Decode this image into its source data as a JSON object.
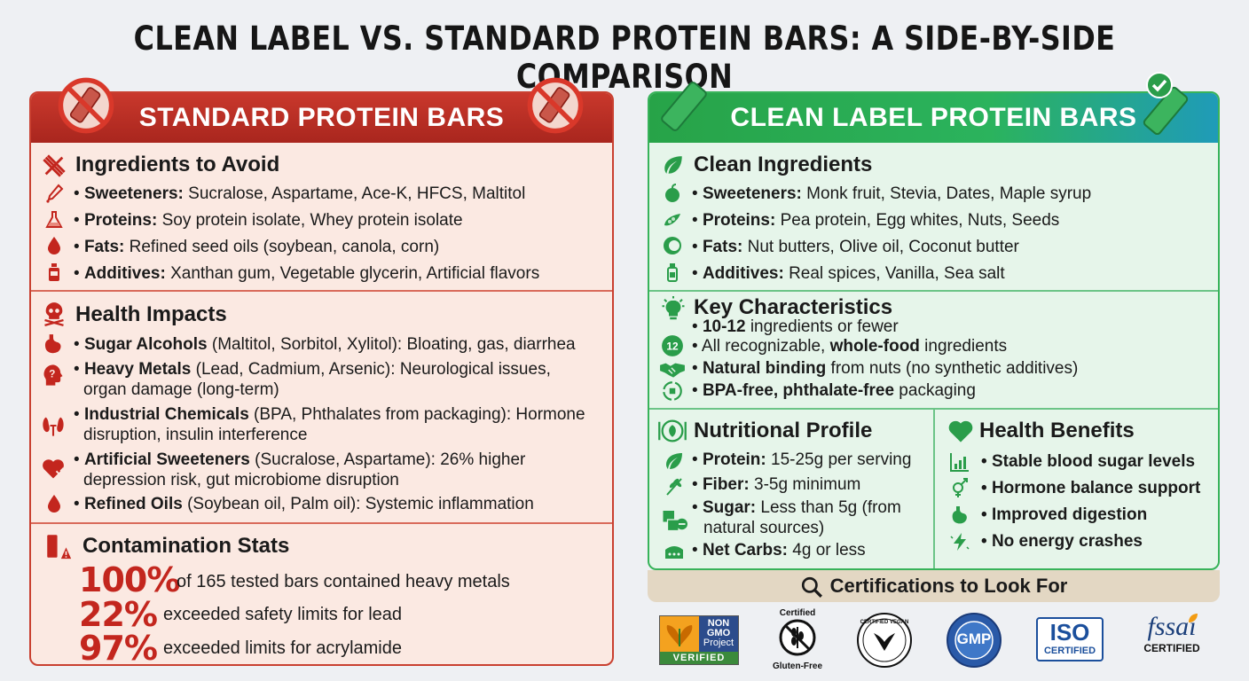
{
  "title": "CLEAN LABEL VS. STANDARD PROTEIN BARS: A SIDE-BY-SIDE COMPARISON",
  "standard": {
    "header": "STANDARD PROTEIN BARS",
    "avoid": {
      "title": "Ingredients to Avoid",
      "items": [
        {
          "label": "Sweeteners:",
          "text": " Sucralose, Aspartame, Ace-K, HFCS, Maltitol",
          "icon": "dropper-icon"
        },
        {
          "label": "Proteins:",
          "text": " Soy protein isolate, Whey protein isolate",
          "icon": "flask-icon"
        },
        {
          "label": "Fats:",
          "text": " Refined seed oils (soybean, canola, corn)",
          "icon": "oil-drop-icon"
        },
        {
          "label": "Additives:",
          "text": " Xanthan gum, Vegetable glycerin, Artificial flavors",
          "icon": "bottle-icon"
        }
      ]
    },
    "health": {
      "title": "Health Impacts",
      "items": [
        {
          "label": "Sugar Alcohols",
          "l1": " (Maltitol, Sorbitol, Xylitol): Bloating, gas, diarrhea",
          "l2": "",
          "icon": "stomach-icon"
        },
        {
          "label": "Heavy Metals",
          "l1": " (Lead, Cadmium, Arsenic): Neurological issues,",
          "l2": "organ damage (long-term)",
          "icon": "head-icon"
        },
        {
          "label": "Industrial Chemicals",
          "l1": " (BPA, Phthalates from packaging): Hormone",
          "l2": "disruption, insulin interference",
          "icon": "kidney-icon"
        },
        {
          "label": "Artificial Sweeteners",
          "l1": " (Sucralose, Aspartame): 26% higher",
          "l2": "depression risk, gut microbiome disruption",
          "icon": "heart-icon"
        },
        {
          "label": "Refined Oils",
          "l1": " (Soybean oil, Palm oil): Systemic inflammation",
          "l2": "",
          "icon": "oil-drop-icon"
        }
      ]
    },
    "contamination": {
      "title": "Contamination Stats",
      "stats": [
        {
          "value": "100%",
          "text": "of 165 tested bars contained heavy metals"
        },
        {
          "value": "22%",
          "text": "exceeded safety limits for lead"
        },
        {
          "value": "97%",
          "text": "exceeded limits for acrylamide"
        }
      ]
    }
  },
  "clean": {
    "header": "CLEAN LABEL PROTEIN BARS",
    "ingredients": {
      "title": "Clean Ingredients",
      "items": [
        {
          "label": "Sweeteners:",
          "text": " Monk fruit, Stevia, Dates, Maple syrup",
          "icon": "fruit-icon"
        },
        {
          "label": "Proteins:",
          "text": " Pea protein, Egg whites, Nuts, Seeds",
          "icon": "pea-icon"
        },
        {
          "label": "Fats:",
          "text": " Nut butters, Olive oil, Coconut butter",
          "icon": "coconut-icon"
        },
        {
          "label": "Additives:",
          "text": " Real spices, Vanilla, Sea salt",
          "icon": "jar-icon"
        }
      ]
    },
    "characteristics": {
      "title": "Key Characteristics",
      "items": [
        {
          "pre": "",
          "bold": "10-12",
          "post": " ingredients or fewer",
          "icon": "bulb-icon"
        },
        {
          "pre": "All recognizable, ",
          "bold": "whole-food",
          "post": " ingredients",
          "icon": "twelve-icon",
          "badge": "12"
        },
        {
          "pre": "",
          "bold": "Natural binding",
          "post": " from nuts (no synthetic additives)",
          "icon": "handshake-icon"
        },
        {
          "pre": "",
          "bold": "BPA-free, phthalate-free",
          "post": " packaging",
          "icon": "recycle-icon"
        }
      ]
    },
    "nutrition": {
      "title": "Nutritional Profile",
      "items": [
        {
          "label": "Protein:",
          "l1": " 15-25g per serving",
          "l2": "",
          "icon": "leaf-icon"
        },
        {
          "label": "Fiber:",
          "l1": " 3-5g minimum",
          "l2": "",
          "icon": "wheat-icon"
        },
        {
          "label": "Sugar:",
          "l1": " Less than 5g (from",
          "l2": "natural sources)",
          "icon": "sugar-cube-icon"
        },
        {
          "label": "Net Carbs:",
          "l1": " 4g or less",
          "l2": "",
          "icon": "scale-icon"
        }
      ]
    },
    "benefits": {
      "title": "Health Benefits",
      "items": [
        {
          "text": "Stable blood sugar levels",
          "icon": "chart-icon"
        },
        {
          "text": "Hormone balance support",
          "icon": "gender-icon"
        },
        {
          "text": "Improved digestion",
          "icon": "stomach-icon"
        },
        {
          "text": "No energy crashes",
          "icon": "bolt-icon"
        }
      ]
    },
    "certifications": {
      "title": "Certifications to Look For",
      "logos": {
        "nongmo_l1": "NON",
        "nongmo_l2": "GMO",
        "nongmo_l3": "Project",
        "nongmo_l4": "VERIFIED",
        "gf_top": "Certified",
        "gf_bottom": "Gluten-Free",
        "vegan": "CERTIFIED VEGAN",
        "gmp": "GMP",
        "iso_l1": "ISO",
        "iso_l2": "CERTIFIED",
        "fssai_l1": "fssai",
        "fssai_l2": "CERTIFIED"
      }
    }
  },
  "colors": {
    "red": "#c3261e",
    "green": "#2bb35d",
    "teal": "#1f9bb8"
  }
}
